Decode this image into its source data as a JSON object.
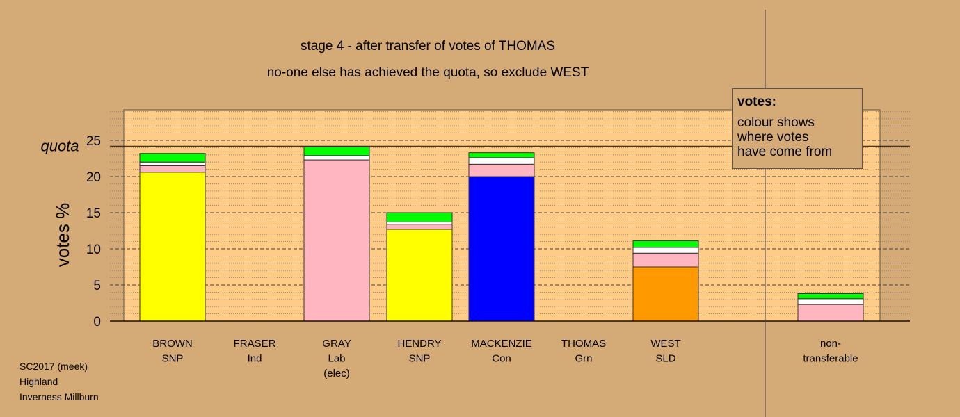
{
  "title_line1": "stage 4 - after transfer of votes of THOMAS",
  "title_line2": "no-one else has achieved the quota, so exclude WEST",
  "legend": {
    "heading": "votes:",
    "lines": [
      "colour shows",
      "where votes",
      "have come from"
    ]
  },
  "footer": [
    "SC2017 (meek)",
    "Highland",
    "Inverness Millburn"
  ],
  "colors": {
    "background": "#d4aa77",
    "plot_area": "#ffcc88",
    "snp": "#ffff00",
    "lab": "#ffb6c1",
    "con": "#0000ff",
    "sld": "#ff9900",
    "transfer_green": "#00ff00",
    "transfer_white": "#ffffff",
    "transfer_pink": "#ffb6c1"
  },
  "chart_data": {
    "type": "bar",
    "stacked": true,
    "ylabel": "votes %",
    "yticks": [
      0,
      5,
      10,
      15,
      20,
      25
    ],
    "ylim": [
      0,
      29.5
    ],
    "quota": {
      "label": "quota",
      "value": 24.2
    },
    "grid": "dashed",
    "categories": [
      {
        "name": "BROWN",
        "party": "SNP",
        "note": ""
      },
      {
        "name": "FRASER",
        "party": "Ind",
        "note": ""
      },
      {
        "name": "GRAY",
        "party": "Lab",
        "note": "(elec)"
      },
      {
        "name": "HENDRY",
        "party": "SNP",
        "note": ""
      },
      {
        "name": "MACKENZIE",
        "party": "Con",
        "note": ""
      },
      {
        "name": "THOMAS",
        "party": "Grn",
        "note": ""
      },
      {
        "name": "WEST",
        "party": "SLD",
        "note": ""
      },
      {
        "name": "non-",
        "party": "transferable",
        "note": ""
      }
    ],
    "bars": [
      [
        {
          "value": 20.6,
          "color": "#ffff00"
        },
        {
          "value": 0.9,
          "color": "#ffb6c1"
        },
        {
          "value": 0.5,
          "color": "#ffffff"
        },
        {
          "value": 1.2,
          "color": "#00ff00"
        }
      ],
      [],
      [
        {
          "value": 22.3,
          "color": "#ffb6c1"
        },
        {
          "value": 0.6,
          "color": "#ffffff"
        },
        {
          "value": 1.2,
          "color": "#00ff00"
        }
      ],
      [
        {
          "value": 12.7,
          "color": "#ffff00"
        },
        {
          "value": 0.7,
          "color": "#ffb6c1"
        },
        {
          "value": 0.3,
          "color": "#ffffff"
        },
        {
          "value": 1.3,
          "color": "#00ff00"
        }
      ],
      [
        {
          "value": 20.0,
          "color": "#0000ff"
        },
        {
          "value": 1.7,
          "color": "#ffb6c1"
        },
        {
          "value": 0.9,
          "color": "#ffffff"
        },
        {
          "value": 0.7,
          "color": "#00ff00"
        }
      ],
      [],
      [
        {
          "value": 7.5,
          "color": "#ff9900"
        },
        {
          "value": 1.9,
          "color": "#ffb6c1"
        },
        {
          "value": 0.8,
          "color": "#ffffff"
        },
        {
          "value": 0.9,
          "color": "#00ff00"
        }
      ],
      [
        {
          "value": 2.3,
          "color": "#ffb6c1"
        },
        {
          "value": 0.8,
          "color": "#ffffff"
        },
        {
          "value": 0.7,
          "color": "#00ff00"
        }
      ]
    ]
  }
}
